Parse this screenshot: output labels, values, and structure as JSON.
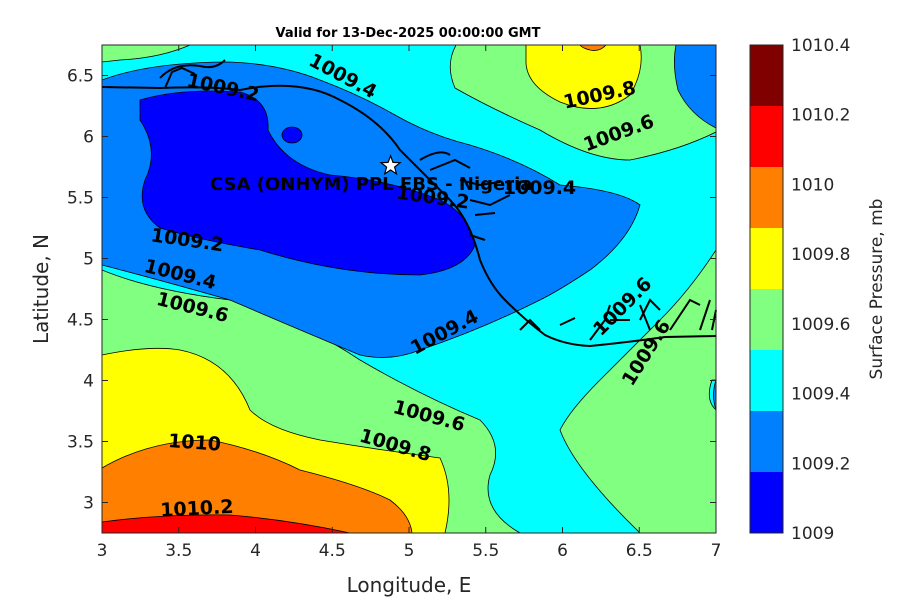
{
  "title": "Valid for 13-Dec-2025 00:00:00 GMT",
  "map": {
    "xlabel": "Longitude, E",
    "ylabel": "Latitude, N",
    "xlim": [
      3,
      7
    ],
    "ylim": [
      2.75,
      6.75
    ],
    "xticks": [
      "3",
      "3.5",
      "4",
      "4.5",
      "5",
      "5.5",
      "6",
      "6.5",
      "7"
    ],
    "yticks": [
      "3",
      "3.5",
      "4",
      "4.5",
      "5",
      "5.5",
      "6",
      "6.5"
    ],
    "xtick_values": [
      3,
      3.5,
      4,
      4.5,
      5,
      5.5,
      6,
      6.5,
      7
    ],
    "ytick_values": [
      3,
      3.5,
      4,
      4.5,
      5,
      5.5,
      6,
      6.5
    ],
    "site_label": "CSA (ONHYM) PPL EBS - Nigeria",
    "site_marker": {
      "lon": 4.88,
      "lat": 5.76,
      "icon": "white-star-icon"
    },
    "contour_labels": [
      {
        "text": "1009.4",
        "lon": 4.55,
        "lat": 6.45,
        "angle": 28
      },
      {
        "text": "1009.2",
        "lon": 3.78,
        "lat": 6.35,
        "angle": 12
      },
      {
        "text": "1009.8",
        "lon": 6.25,
        "lat": 6.29,
        "angle": -12
      },
      {
        "text": "1009.6",
        "lon": 6.38,
        "lat": 5.98,
        "angle": -20
      },
      {
        "text": "1009.2",
        "lon": 5.15,
        "lat": 5.45,
        "angle": 8
      },
      {
        "text": "1009.4",
        "lon": 5.85,
        "lat": 5.53,
        "angle": 0
      },
      {
        "text": "1009.2",
        "lon": 3.55,
        "lat": 5.1,
        "angle": 8
      },
      {
        "text": "1009.4",
        "lon": 3.5,
        "lat": 4.82,
        "angle": 14
      },
      {
        "text": "1009.6",
        "lon": 3.58,
        "lat": 4.55,
        "angle": 14
      },
      {
        "text": "1009.4",
        "lon": 5.25,
        "lat": 4.35,
        "angle": -28
      },
      {
        "text": "1009.6",
        "lon": 6.42,
        "lat": 4.57,
        "angle": -45
      },
      {
        "text": "1009.6",
        "lon": 6.58,
        "lat": 4.2,
        "angle": -58
      },
      {
        "text": "1009.6",
        "lon": 5.12,
        "lat": 3.66,
        "angle": 15
      },
      {
        "text": "1009.8",
        "lon": 4.9,
        "lat": 3.42,
        "angle": 16
      },
      {
        "text": "1010",
        "lon": 3.6,
        "lat": 3.44,
        "angle": 4
      },
      {
        "text": "1010.2",
        "lon": 3.62,
        "lat": 2.9,
        "angle": -3
      }
    ]
  },
  "colorbar": {
    "label": "Surface Pressure, mb",
    "levels": [
      "1010.4",
      "1010.2",
      "1010",
      "1009.8",
      "1009.6",
      "1009.4",
      "1009.2",
      "1009"
    ],
    "colors": [
      "#800000",
      "#ff0000",
      "#ff8000",
      "#ffff00",
      "#80ff80",
      "#00ffff",
      "#0080ff",
      "#0000ff"
    ]
  }
}
